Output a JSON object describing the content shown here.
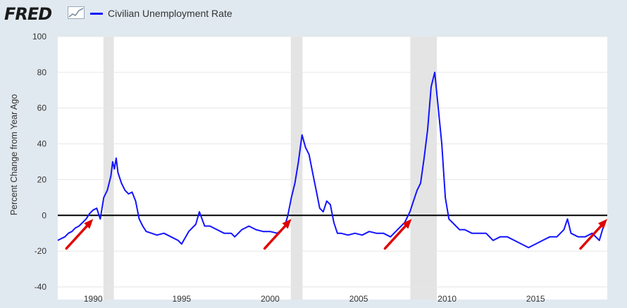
{
  "header": {
    "logo": "FRED",
    "legend_label": "Civilian Unemployment Rate"
  },
  "colors": {
    "series": "#1414ff",
    "recession": "#e4e4e4",
    "zero_line": "#000000",
    "arrow": "#e00000",
    "background": "#e1e9f0",
    "plot": "#ffffff"
  },
  "chart_data": {
    "type": "line",
    "ylabel": "Percent Change from Year Ago",
    "xlabel": "",
    "xlim": [
      1988.0,
      2019.05
    ],
    "ylim": [
      -40,
      100
    ],
    "yticks": [
      -40,
      -20,
      0,
      20,
      40,
      60,
      80,
      100
    ],
    "xticks": [
      1990,
      1995,
      2000,
      2005,
      2010,
      2015
    ],
    "grid": "horizontal",
    "recessions": [
      [
        1990.58,
        1991.17
      ],
      [
        2001.17,
        2001.83
      ],
      [
        2007.92,
        2009.42
      ]
    ],
    "reference_line": 0,
    "series": [
      {
        "name": "Civilian Unemployment Rate",
        "x": [
          1988.0,
          1988.2,
          1988.4,
          1988.6,
          1988.8,
          1989.0,
          1989.2,
          1989.4,
          1989.6,
          1989.8,
          1990.0,
          1990.2,
          1990.4,
          1990.6,
          1990.8,
          1991.0,
          1991.1,
          1991.2,
          1991.3,
          1991.4,
          1991.6,
          1991.8,
          1992.0,
          1992.2,
          1992.4,
          1992.6,
          1992.8,
          1993.0,
          1993.3,
          1993.6,
          1994.0,
          1994.4,
          1994.8,
          1995.0,
          1995.4,
          1995.8,
          1996.0,
          1996.3,
          1996.6,
          1997.0,
          1997.4,
          1997.8,
          1998.0,
          1998.4,
          1998.8,
          1999.2,
          1999.6,
          2000.0,
          2000.4,
          2000.8,
          2001.0,
          2001.2,
          2001.4,
          2001.6,
          2001.8,
          2002.0,
          2002.2,
          2002.4,
          2002.6,
          2002.8,
          2003.0,
          2003.2,
          2003.4,
          2003.6,
          2003.8,
          2004.0,
          2004.4,
          2004.8,
          2005.2,
          2005.6,
          2006.0,
          2006.4,
          2006.8,
          2007.2,
          2007.6,
          2007.9,
          2008.1,
          2008.3,
          2008.5,
          2008.7,
          2008.9,
          2009.1,
          2009.3,
          2009.5,
          2009.7,
          2009.9,
          2010.1,
          2010.3,
          2010.5,
          2010.7,
          2011.0,
          2011.4,
          2011.8,
          2012.2,
          2012.6,
          2013.0,
          2013.4,
          2013.8,
          2014.2,
          2014.6,
          2015.0,
          2015.4,
          2015.8,
          2016.2,
          2016.6,
          2016.8,
          2017.0,
          2017.4,
          2017.8,
          2018.2,
          2018.6,
          2018.9
        ],
        "values": [
          -14,
          -13,
          -12,
          -10,
          -9,
          -7,
          -6,
          -4,
          -2,
          1,
          3,
          4,
          -2,
          10,
          14,
          22,
          30,
          26,
          32,
          24,
          18,
          14,
          12,
          13,
          8,
          -2,
          -6,
          -9,
          -10,
          -11,
          -10,
          -12,
          -14,
          -16,
          -9,
          -5,
          2,
          -6,
          -6,
          -8,
          -10,
          -10,
          -12,
          -8,
          -6,
          -8,
          -9,
          -9,
          -10,
          -7,
          0,
          10,
          18,
          30,
          45,
          38,
          34,
          24,
          14,
          4,
          2,
          8,
          6,
          -4,
          -10,
          -10,
          -11,
          -10,
          -11,
          -9,
          -10,
          -10,
          -12,
          -8,
          -4,
          2,
          8,
          14,
          18,
          32,
          48,
          72,
          80,
          60,
          40,
          10,
          -2,
          -4,
          -6,
          -8,
          -8,
          -10,
          -10,
          -10,
          -14,
          -12,
          -12,
          -14,
          -16,
          -18,
          -16,
          -14,
          -12,
          -12,
          -8,
          -2,
          -10,
          -12,
          -12,
          -10,
          -14,
          -4
        ]
      }
    ]
  },
  "annotations": {
    "arrows_x": [
      1990.0,
      2001.2,
      2008.0,
      2019.05
    ]
  }
}
